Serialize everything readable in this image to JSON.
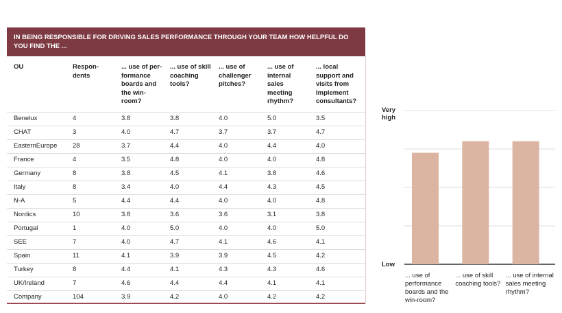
{
  "table": {
    "title": "IN BEING RESPONSIBLE FOR DRIVING SALES PERFORMANCE THROUGH YOUR TEAM HOW HELPFUL DO YOU FIND THE ...",
    "columns": [
      "OU",
      "Respon-\ndents",
      "... use of per-\nformance\nboards and\nthe win-\nroom?",
      "... use of skill\ncoaching\ntools?",
      "... use of\nchallenger\npitches?",
      "... use of\ninternal\nsales\nmeeting\nrhythm?",
      "... local\nsupport and\nvisits from\nImplement\nconsultants?"
    ],
    "rows": [
      [
        "Benelux",
        "4",
        "3.8",
        "3.8",
        "4.0",
        "5.0",
        "3.5"
      ],
      [
        "CHAT",
        "3",
        "4.0",
        "4.7",
        "3.7",
        "3.7",
        "4.7"
      ],
      [
        "EasternEurope",
        "28",
        "3.7",
        "4.4",
        "4.0",
        "4.4",
        "4.0"
      ],
      [
        "France",
        "4",
        "3.5",
        "4.8",
        "4.0",
        "4.0",
        "4.8"
      ],
      [
        "Germany",
        "8",
        "3.8",
        "4.5",
        "4.1",
        "3.8",
        "4.6"
      ],
      [
        "Italy",
        "8",
        "3.4",
        "4.0",
        "4.4",
        "4.3",
        "4.5"
      ],
      [
        "N-A",
        "5",
        "4.4",
        "4.4",
        "4.0",
        "4.0",
        "4.8"
      ],
      [
        "Nordics",
        "10",
        "3.8",
        "3.6",
        "3.6",
        "3.1",
        "3.8"
      ],
      [
        "Portugal",
        "1",
        "4.0",
        "5.0",
        "4.0",
        "4.0",
        "5.0"
      ],
      [
        "SEE",
        "7",
        "4.0",
        "4.7",
        "4.1",
        "4.6",
        "4.1"
      ],
      [
        "Spain",
        "11",
        "4.1",
        "3.9",
        "3.9",
        "4.5",
        "4.2"
      ],
      [
        "Turkey",
        "8",
        "4.4",
        "4.1",
        "4.3",
        "4.3",
        "4.6"
      ],
      [
        "UK/Ireland",
        "7",
        "4.6",
        "4.4",
        "4.4",
        "4.1",
        "4.1"
      ],
      [
        "Company",
        "104",
        "3.9",
        "4.2",
        "4.0",
        "4.2",
        "4.2"
      ]
    ]
  },
  "chart_data": {
    "type": "bar",
    "categories": [
      "... use of performance boards and the win-room?",
      "... use of skill coaching tools?",
      "... use of internal sales meeting rhythm?"
    ],
    "values": [
      3.9,
      4.2,
      4.2
    ],
    "color": "#dcb4a2",
    "ylim": [
      1,
      5
    ],
    "yticks": [
      {
        "value": 1,
        "label": "Low"
      },
      {
        "value": 2,
        "label": null
      },
      {
        "value": 3,
        "label": null
      },
      {
        "value": 4,
        "label": null
      },
      {
        "value": 5,
        "label": "Very high"
      }
    ],
    "grid": true
  }
}
